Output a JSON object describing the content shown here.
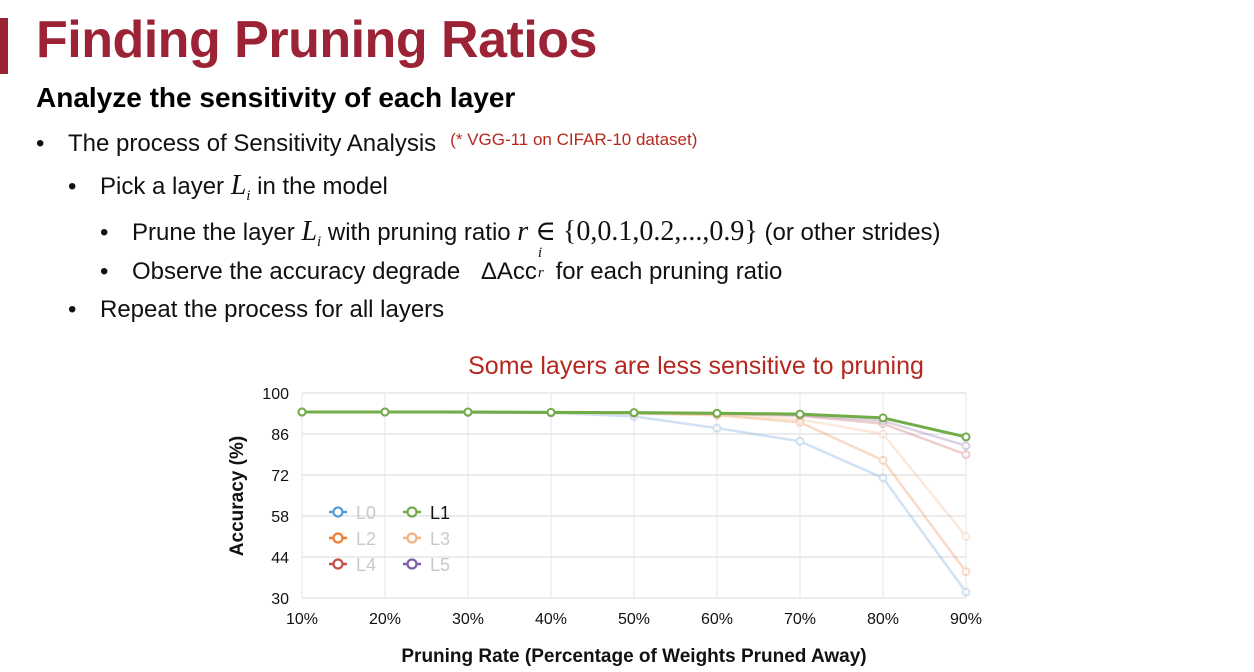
{
  "slide": {
    "title": "Finding Pruning Ratios",
    "subtitle": "Analyze the sensitivity of each layer",
    "bullets": {
      "b1": {
        "text": "The process of Sensitivity Analysis",
        "note": "(* VGG-11 on CIFAR-10 dataset)"
      },
      "b2": {
        "pre": "Pick a layer ",
        "var": "L",
        "sub": "i",
        "post": " in the model"
      },
      "b3": {
        "pre": "Prune the layer ",
        "var": "L",
        "sub": "i",
        "mid": " with pruning ratio ",
        "r": "r",
        "set": " ∈ {0,0.1,0.2,...,0.9}",
        "post": " (or other strides)"
      },
      "b4": {
        "pre": "Observe the accuracy degrade ",
        "delta": "ΔAcc",
        "sup": "i",
        "sub": "r",
        "post": " for each pruning ratio"
      },
      "b5": {
        "text": "Repeat the process for all layers"
      }
    },
    "bullet_char": "•"
  },
  "chart_data": {
    "type": "line",
    "title": "Some layers are less sensitive to pruning",
    "xlabel": "Pruning Rate (Percentage of Weights Pruned Away)",
    "ylabel": "Accuracy (%)",
    "x": [
      "10%",
      "20%",
      "30%",
      "40%",
      "50%",
      "60%",
      "70%",
      "80%",
      "90%"
    ],
    "yticks": [
      100,
      86,
      72,
      58,
      44,
      30
    ],
    "ylim": [
      30,
      100
    ],
    "grid": true,
    "legend_position": "lower-left",
    "series": [
      {
        "name": "L0",
        "color": "#5b9bd5",
        "faded": true,
        "values": [
          93.5,
          93.5,
          93.4,
          93.2,
          92,
          88,
          83.5,
          71,
          32
        ]
      },
      {
        "name": "L1",
        "color": "#70ad47",
        "faded": false,
        "values": [
          93.5,
          93.5,
          93.5,
          93.4,
          93.3,
          93.1,
          92.8,
          91.5,
          85
        ]
      },
      {
        "name": "L2",
        "color": "#ed7d31",
        "faded": true,
        "values": [
          93.5,
          93.5,
          93.4,
          93.3,
          93.0,
          92.4,
          90.0,
          77.0,
          39.0
        ]
      },
      {
        "name": "L3",
        "color": "#f4b183",
        "faded": true,
        "values": [
          93.5,
          93.5,
          93.4,
          93.3,
          93.1,
          92.6,
          91.0,
          86.0,
          51.0
        ]
      },
      {
        "name": "L4",
        "color": "#c5504b",
        "faded": true,
        "values": [
          93.5,
          93.5,
          93.4,
          93.3,
          93.2,
          92.9,
          92.2,
          89.5,
          79.0
        ]
      },
      {
        "name": "L5",
        "color": "#7f5fa8",
        "faded": true,
        "values": [
          93.5,
          93.5,
          93.4,
          93.3,
          93.2,
          93.0,
          92.5,
          90.5,
          82.0
        ]
      }
    ]
  }
}
